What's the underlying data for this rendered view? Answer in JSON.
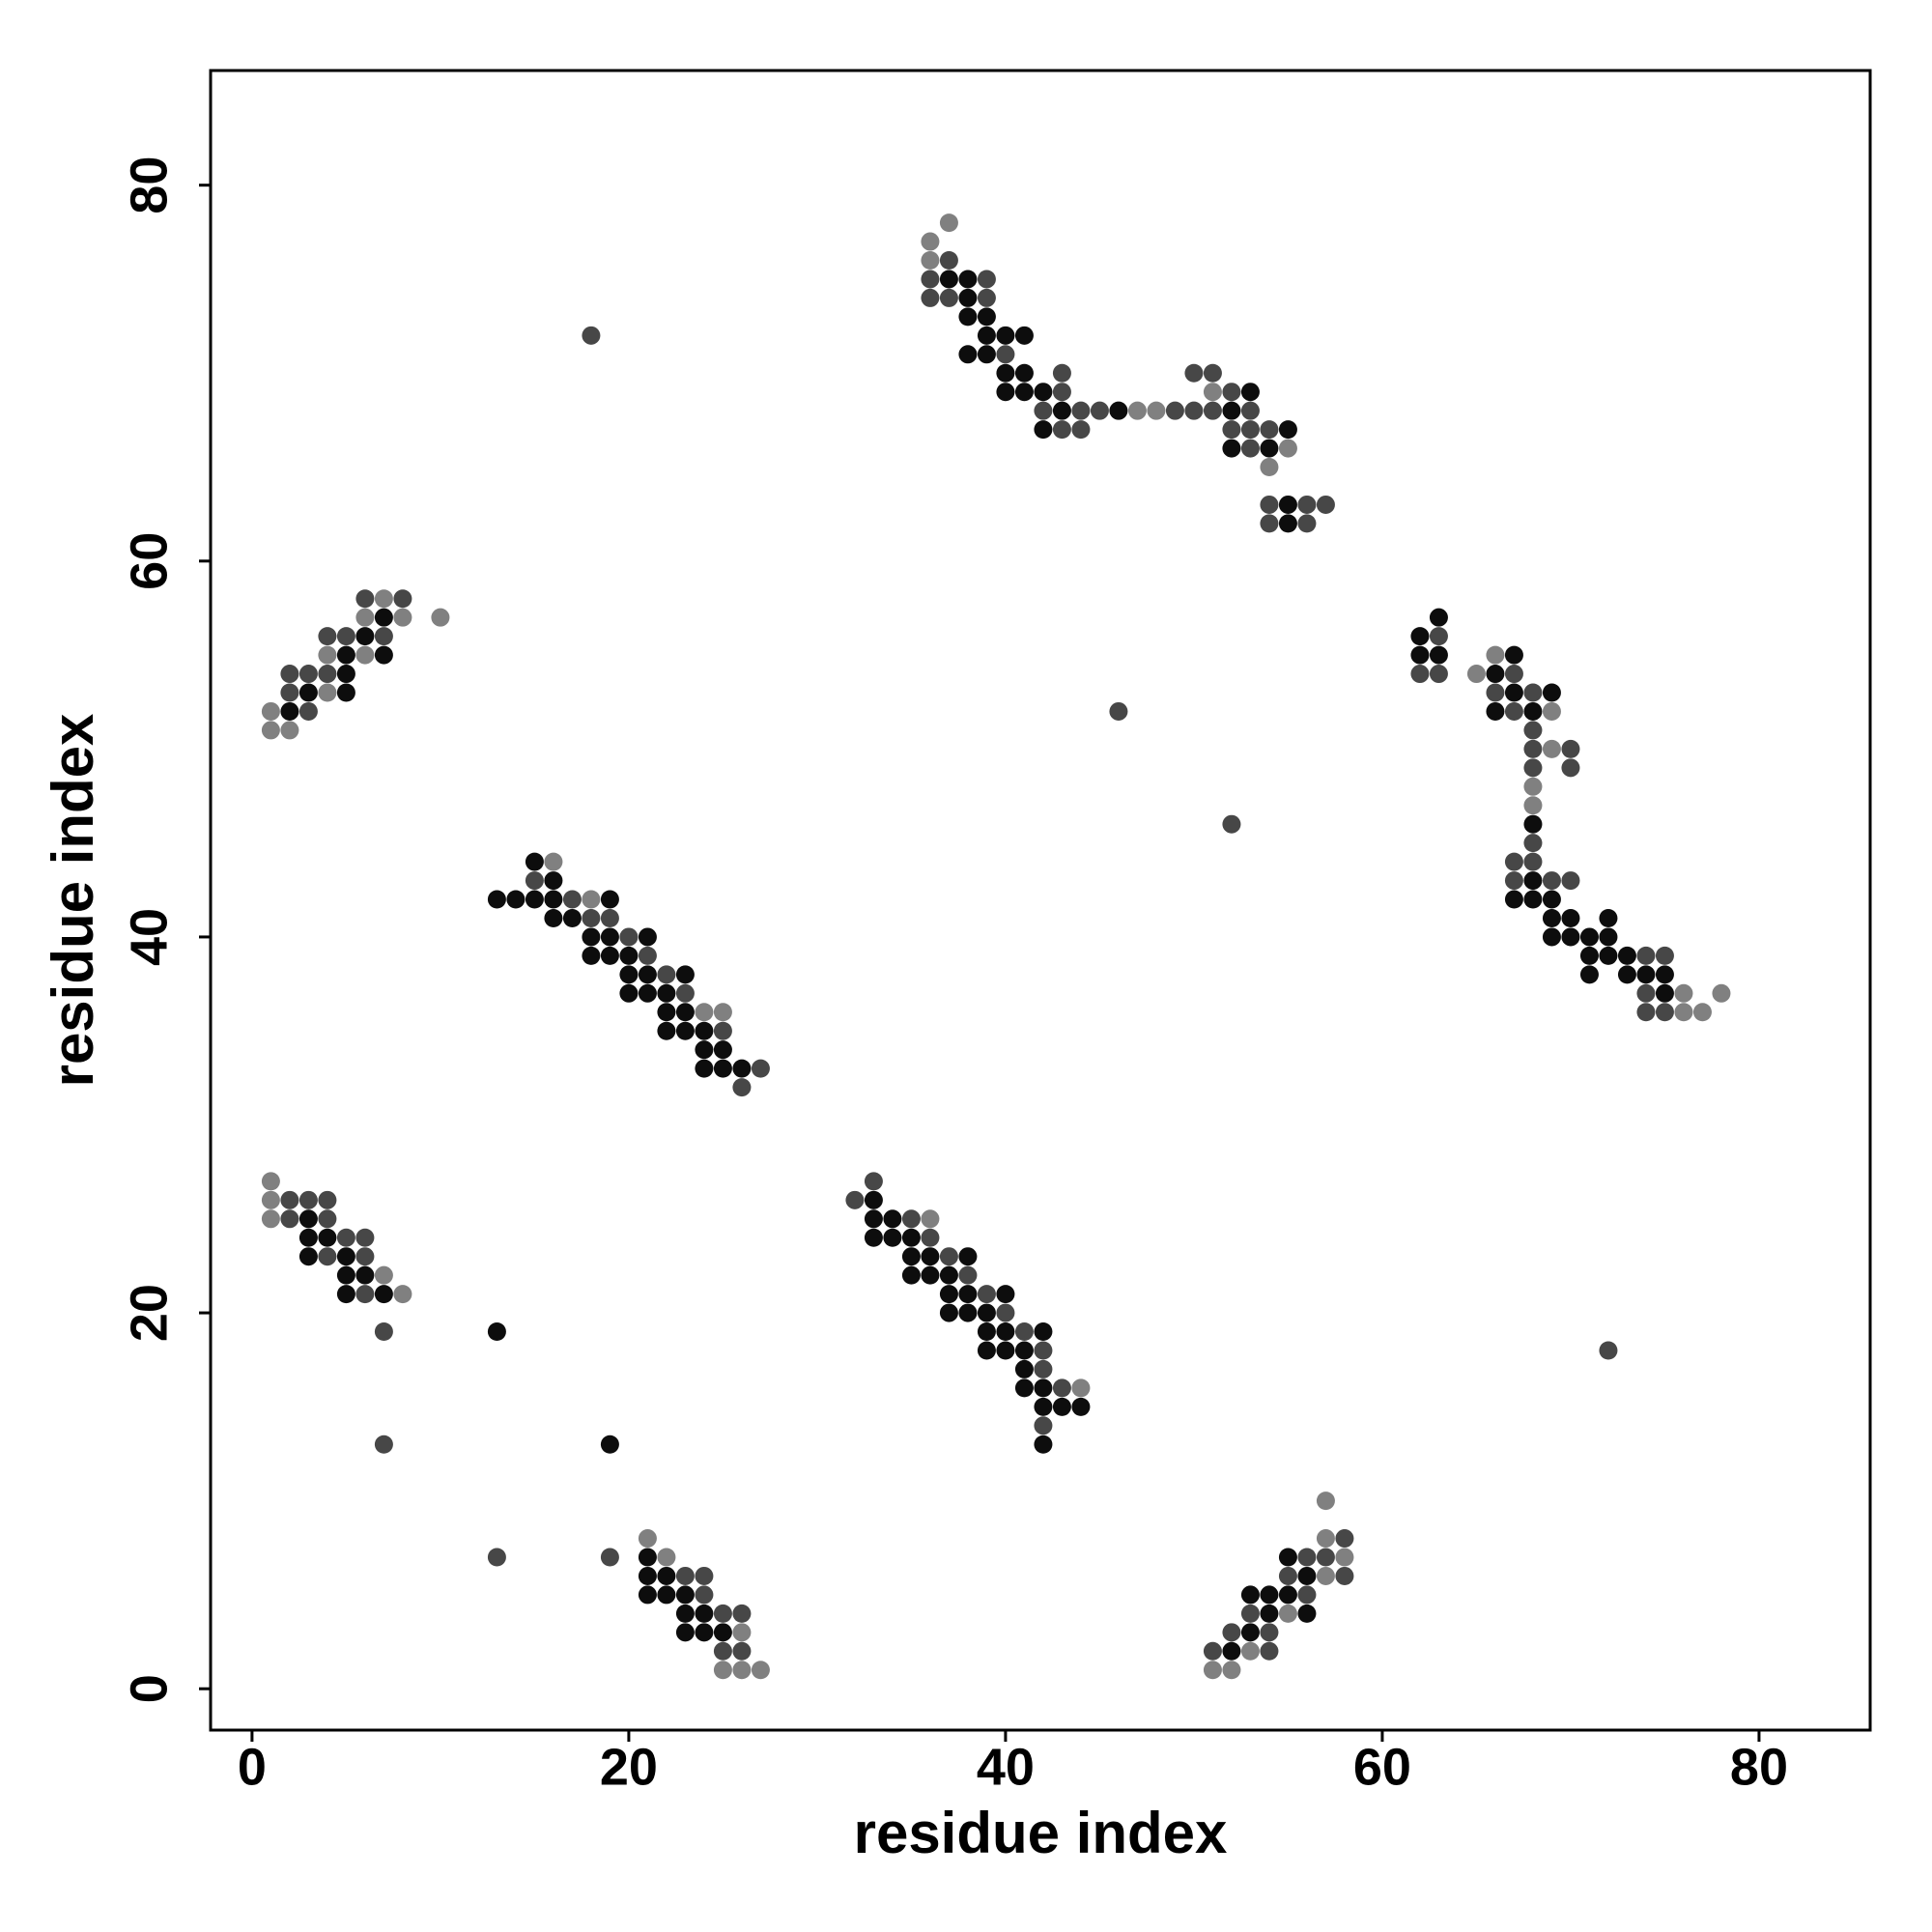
{
  "chart_data": {
    "type": "scatter",
    "x_label": "residue index",
    "y_label": "residue index",
    "xlim": [
      -2.2,
      85.9
    ],
    "ylim": [
      -2.2,
      86.1
    ],
    "xticks": [
      0,
      20,
      40,
      60,
      80
    ],
    "yticks": [
      0,
      20,
      40,
      60,
      80
    ],
    "grid": false,
    "series": [
      {
        "color": "#0d0d0d",
        "x": [
          3,
          3,
          4,
          3,
          5,
          5,
          6,
          5,
          7,
          13,
          19,
          21,
          21,
          22,
          21,
          22,
          23,
          23,
          24,
          23,
          24,
          25,
          55,
          56,
          53,
          54,
          55,
          54,
          56,
          53,
          52,
          33,
          33,
          34,
          33,
          34,
          35,
          35,
          36,
          38,
          35,
          36,
          37,
          37,
          38,
          40,
          37,
          38,
          39,
          39,
          40,
          42,
          39,
          40,
          41,
          41,
          41,
          42,
          42,
          43,
          44,
          42,
          15,
          16,
          13,
          14,
          15,
          16,
          19,
          16,
          17,
          18,
          19,
          21,
          18,
          19,
          20,
          20,
          21,
          23,
          20,
          21,
          22,
          22,
          23,
          22,
          23,
          24,
          24,
          25,
          24,
          25,
          26,
          7,
          6,
          5,
          7,
          5,
          3,
          5,
          2,
          37,
          38,
          38,
          38,
          39,
          39,
          40,
          41,
          38,
          39,
          40,
          41,
          40,
          41,
          42,
          53,
          43,
          46,
          52,
          42,
          55,
          52,
          54,
          55,
          55,
          63,
          62,
          62,
          63,
          67,
          66,
          67,
          69,
          66,
          68,
          68,
          68,
          67,
          68,
          69,
          69,
          70,
          72,
          69,
          70,
          71,
          72,
          71,
          72,
          73,
          71,
          73,
          74,
          75,
          75
        ],
        "y": [
          25,
          24,
          24,
          23,
          23,
          22,
          22,
          21,
          21,
          19,
          13,
          7,
          6,
          6,
          5,
          5,
          5,
          4,
          4,
          3,
          3,
          3,
          7,
          6,
          5,
          5,
          5,
          4,
          4,
          3,
          2,
          26,
          25,
          25,
          24,
          24,
          24,
          23,
          23,
          23,
          22,
          22,
          22,
          21,
          21,
          21,
          20,
          20,
          20,
          19,
          19,
          19,
          18,
          18,
          18,
          17,
          16,
          16,
          15,
          15,
          15,
          13,
          44,
          43,
          42,
          42,
          42,
          42,
          42,
          41,
          41,
          40,
          40,
          40,
          39,
          39,
          39,
          38,
          38,
          38,
          37,
          37,
          37,
          36,
          36,
          35,
          35,
          35,
          34,
          34,
          33,
          33,
          33,
          57,
          56,
          55,
          55,
          54,
          53,
          53,
          52,
          75,
          75,
          74,
          73,
          73,
          72,
          72,
          72,
          71,
          71,
          70,
          70,
          69,
          69,
          69,
          69,
          68,
          68,
          68,
          67,
          67,
          66,
          66,
          63,
          62,
          57,
          56,
          55,
          55,
          55,
          54,
          53,
          53,
          52,
          52,
          46,
          43,
          42,
          42,
          42,
          41,
          41,
          41,
          40,
          40,
          40,
          40,
          39,
          39,
          39,
          38,
          38,
          38,
          38,
          37
        ]
      },
      {
        "color": "#474747",
        "x": [
          2,
          3,
          4,
          2,
          4,
          5,
          6,
          4,
          6,
          6,
          7,
          7,
          13,
          19,
          23,
          24,
          24,
          25,
          26,
          25,
          26,
          58,
          56,
          57,
          55,
          58,
          56,
          53,
          52,
          54,
          51,
          54,
          33,
          32,
          35,
          36,
          37,
          38,
          39,
          40,
          41,
          42,
          42,
          43,
          42,
          72,
          15,
          17,
          18,
          19,
          20,
          21,
          22,
          23,
          25,
          27,
          26,
          6,
          8,
          4,
          5,
          7,
          2,
          3,
          4,
          2,
          3,
          18,
          46,
          52,
          37,
          36,
          39,
          36,
          37,
          39,
          40,
          43,
          43,
          50,
          51,
          52,
          42,
          44,
          45,
          49,
          50,
          51,
          53,
          43,
          44,
          52,
          53,
          54,
          53,
          54,
          56,
          57,
          54,
          56,
          63,
          62,
          63,
          67,
          66,
          68,
          67,
          68,
          68,
          70,
          68,
          70,
          68,
          67,
          68,
          67,
          69,
          70,
          74,
          75,
          74,
          74,
          75
        ],
        "y": [
          26,
          26,
          26,
          25,
          25,
          24,
          24,
          23,
          23,
          21,
          19,
          13,
          7,
          7,
          6,
          6,
          5,
          4,
          4,
          2,
          2,
          8,
          7,
          7,
          6,
          6,
          5,
          4,
          3,
          3,
          2,
          2,
          27,
          26,
          25,
          24,
          23,
          22,
          21,
          20,
          19,
          18,
          17,
          16,
          14,
          18,
          43,
          42,
          41,
          41,
          40,
          39,
          38,
          37,
          35,
          33,
          32,
          58,
          58,
          56,
          56,
          56,
          54,
          54,
          54,
          53,
          52,
          72,
          52,
          46,
          76,
          75,
          75,
          74,
          74,
          74,
          71,
          70,
          69,
          70,
          70,
          69,
          68,
          68,
          68,
          68,
          68,
          68,
          68,
          67,
          67,
          67,
          67,
          67,
          66,
          63,
          63,
          63,
          62,
          62,
          56,
          54,
          54,
          54,
          53,
          53,
          52,
          51,
          50,
          50,
          49,
          49,
          45,
          44,
          44,
          43,
          43,
          43,
          39,
          39,
          37,
          36,
          36
        ]
      },
      {
        "color": "#808080",
        "x": [
          1,
          1,
          1,
          7,
          8,
          21,
          22,
          26,
          25,
          26,
          27,
          57,
          57,
          58,
          57,
          55,
          53,
          51,
          52,
          36,
          44,
          16,
          18,
          24,
          25,
          7,
          6,
          8,
          10,
          4,
          6,
          4,
          1,
          1,
          2,
          37,
          36,
          36,
          51,
          47,
          48,
          55,
          54,
          65,
          66,
          69,
          69,
          68,
          68,
          76,
          78,
          76,
          77
        ],
        "y": [
          27,
          26,
          25,
          22,
          21,
          8,
          7,
          3,
          1,
          1,
          1,
          10,
          8,
          7,
          6,
          4,
          2,
          1,
          1,
          25,
          16,
          44,
          42,
          36,
          36,
          58,
          57,
          57,
          57,
          55,
          55,
          53,
          52,
          51,
          51,
          78,
          77,
          76,
          69,
          68,
          68,
          66,
          65,
          54,
          55,
          52,
          50,
          48,
          47,
          37,
          37,
          36,
          36
        ]
      }
    ]
  }
}
